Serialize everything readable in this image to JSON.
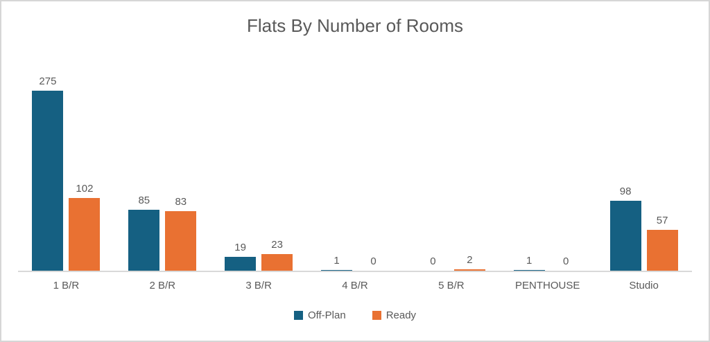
{
  "chart_data": {
    "type": "bar",
    "title": "Flats By Number of Rooms",
    "categories": [
      "1 B/R",
      "2 B/R",
      "3 B/R",
      "4 B/R",
      "5 B/R",
      "PENTHOUSE",
      "Studio"
    ],
    "series": [
      {
        "name": "Off-Plan",
        "color": "#156082",
        "values": [
          275,
          85,
          19,
          1,
          0,
          1,
          98
        ]
      },
      {
        "name": "Ready",
        "color": "#E97132",
        "values": [
          102,
          83,
          23,
          0,
          2,
          0,
          57
        ]
      }
    ],
    "ylim": [
      0,
      275
    ],
    "xlabel": "",
    "ylabel": "",
    "grid": false,
    "data_labels": true,
    "legend_position": "bottom"
  },
  "colors": {
    "title_text": "#595959",
    "label_text": "#595959",
    "axis_line": "#d9d9d9",
    "frame_border": "#d6d6d6",
    "background": "#ffffff"
  }
}
